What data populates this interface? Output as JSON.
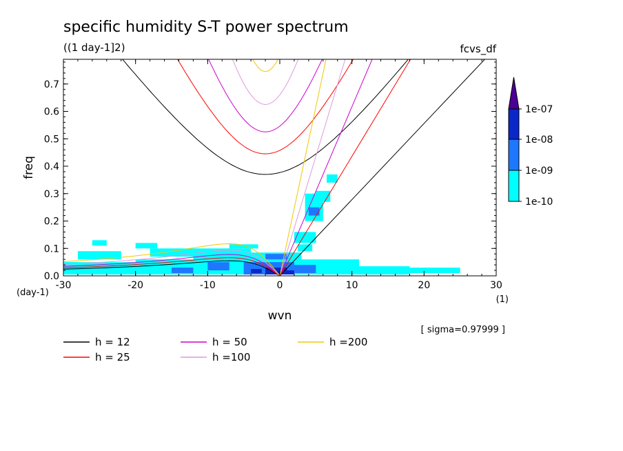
{
  "chart_data": {
    "type": "heatmap",
    "title": "specific humidity S-T power spectrum",
    "subtitle": "((1 day-1]2)",
    "id_label": "fcvs_df",
    "xlabel": "wvn",
    "ylabel": "freq",
    "x_unit": "(1)",
    "y_unit": "(day-1)",
    "sigma_note": "[ sigma=0.97999 ]",
    "xlim": [
      -30,
      30
    ],
    "ylim": [
      0,
      0.79
    ],
    "x_ticks": [
      -30,
      -20,
      -10,
      0,
      10,
      20,
      30
    ],
    "x_tick_labels": [
      "-30",
      "-20",
      "-10",
      "0",
      "10",
      "20",
      "30"
    ],
    "y_ticks": [
      0,
      0.1,
      0.2,
      0.3,
      0.4,
      0.5,
      0.6,
      0.7
    ],
    "y_tick_labels": [
      "0.0",
      "0.1",
      "0.2",
      "0.3",
      "0.4",
      "0.5",
      "0.6",
      "0.7"
    ],
    "colorbar": {
      "levels": [
        "1e-10",
        "1e-09",
        "1e-08",
        "1e-07"
      ],
      "colors": [
        "#00ffff",
        "#1e78ff",
        "#0a28c8",
        "#4b0096"
      ]
    },
    "patches": [
      {
        "level": 0,
        "x0": -30,
        "x1": -17,
        "y0": 0.005,
        "y1": 0.05
      },
      {
        "level": 0,
        "x0": -28,
        "x1": -22,
        "y0": 0.06,
        "y1": 0.09
      },
      {
        "level": 0,
        "x0": -24,
        "x1": -19,
        "y0": 0.02,
        "y1": 0.04
      },
      {
        "level": 0,
        "x0": -20,
        "x1": -8,
        "y0": 0.005,
        "y1": 0.06
      },
      {
        "level": 0,
        "x0": -18,
        "x1": -12,
        "y0": 0.07,
        "y1": 0.1
      },
      {
        "level": 0,
        "x0": -12,
        "x1": -4,
        "y0": 0.005,
        "y1": 0.1
      },
      {
        "level": 0,
        "x0": -7,
        "x1": -3,
        "y0": 0.1,
        "y1": 0.115
      },
      {
        "level": 0,
        "x0": -5,
        "x1": 3,
        "y0": 0.005,
        "y1": 0.085
      },
      {
        "level": 0,
        "x0": -20,
        "x1": -17,
        "y0": 0.1,
        "y1": 0.12
      },
      {
        "level": 0,
        "x0": -26,
        "x1": -24,
        "y0": 0.11,
        "y1": 0.13
      },
      {
        "level": 0,
        "x0": 1,
        "x1": 11,
        "y0": 0.005,
        "y1": 0.06
      },
      {
        "level": 0,
        "x0": 9,
        "x1": 18,
        "y0": 0.005,
        "y1": 0.035
      },
      {
        "level": 0,
        "x0": 17,
        "x1": 25,
        "y0": 0.01,
        "y1": 0.03
      },
      {
        "level": 0,
        "x0": 2,
        "x1": 5,
        "y0": 0.12,
        "y1": 0.16
      },
      {
        "level": 0,
        "x0": 3.5,
        "x1": 6,
        "y0": 0.2,
        "y1": 0.3
      },
      {
        "level": 0,
        "x0": 5,
        "x1": 7,
        "y0": 0.27,
        "y1": 0.31
      },
      {
        "level": 0,
        "x0": 6.5,
        "x1": 8,
        "y0": 0.34,
        "y1": 0.37
      },
      {
        "level": 0,
        "x0": 2.5,
        "x1": 4.5,
        "y0": 0.09,
        "y1": 0.115
      },
      {
        "level": 1,
        "x0": -10,
        "x1": -7,
        "y0": 0.02,
        "y1": 0.05
      },
      {
        "level": 1,
        "x0": -5,
        "x1": 2,
        "y0": 0.005,
        "y1": 0.05
      },
      {
        "level": 1,
        "x0": -15,
        "x1": -12,
        "y0": 0.01,
        "y1": 0.03
      },
      {
        "level": 1,
        "x0": 2,
        "x1": 5,
        "y0": 0.01,
        "y1": 0.04
      },
      {
        "level": 1,
        "x0": 4,
        "x1": 5.5,
        "y0": 0.22,
        "y1": 0.25
      },
      {
        "level": 1,
        "x0": -2,
        "x1": 1,
        "y0": 0.06,
        "y1": 0.08
      },
      {
        "level": 2,
        "x0": -2,
        "x1": 1,
        "y0": 0.005,
        "y1": 0.03
      },
      {
        "level": 2,
        "x0": -4,
        "x1": -2.5,
        "y0": 0.01,
        "y1": 0.025
      },
      {
        "level": 2,
        "x0": 0.5,
        "x1": 2,
        "y0": 0.005,
        "y1": 0.02
      }
    ],
    "legend": [
      {
        "label": "h = 12",
        "h": 12,
        "color": "#000000"
      },
      {
        "label": "h = 25",
        "h": 25,
        "color": "#ff0000"
      },
      {
        "label": "h = 50",
        "h": 50,
        "color": "#cc00cc"
      },
      {
        "label": "h =100",
        "h": 100,
        "color": "#dd99dd"
      },
      {
        "label": "h =200",
        "h": 200,
        "color": "#f0c800"
      }
    ],
    "curves": [
      {
        "h": 12,
        "color": "#000000",
        "kelvin_slope": 0.0278,
        "ig_min": 0.37,
        "ig_c": 0.094,
        "ig_x0": -2,
        "rossby_peak": 0.055
      },
      {
        "h": 25,
        "color": "#ff0000",
        "kelvin_slope": 0.0436,
        "ig_min": 0.445,
        "ig_c": 0.143,
        "ig_x0": -2,
        "rossby_peak": 0.066
      },
      {
        "h": 50,
        "color": "#cc00cc",
        "kelvin_slope": 0.0617,
        "ig_min": 0.525,
        "ig_c": 0.2,
        "ig_x0": -2,
        "rossby_peak": 0.078
      },
      {
        "h": 100,
        "color": "#dd99dd",
        "kelvin_slope": 0.0872,
        "ig_min": 0.625,
        "ig_c": 0.283,
        "ig_x0": -2,
        "rossby_peak": 0.094
      },
      {
        "h": 200,
        "color": "#f0c800",
        "kelvin_slope": 0.1233,
        "ig_min": 0.745,
        "ig_c": 0.4,
        "ig_x0": -2,
        "rossby_peak": 0.117
      }
    ]
  }
}
